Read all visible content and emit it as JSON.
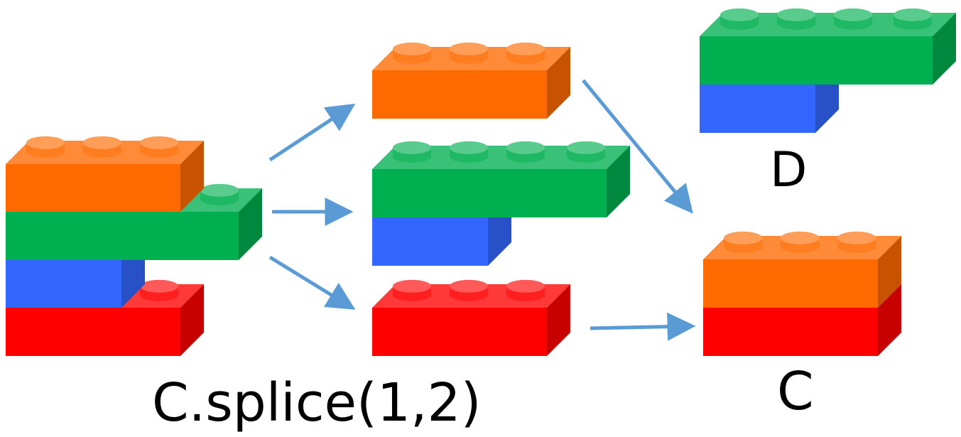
{
  "caption": "C.splice(1,2)",
  "labels": {
    "d": "D",
    "c": "C"
  },
  "colors": {
    "orange": "#ff6a00",
    "green": "#00b050",
    "blue": "#3366ff",
    "red": "#ff0000",
    "arrow": "#5b9bd5"
  },
  "groups": [
    {
      "name": "original-stack",
      "bricks": [
        "orange",
        "green",
        "blue",
        "red"
      ]
    },
    {
      "name": "spliced-pieces",
      "bricks": [
        "orange",
        "green",
        "blue",
        "red"
      ]
    },
    {
      "name": "result-d",
      "bricks": [
        "green",
        "blue"
      ]
    },
    {
      "name": "result-c",
      "bricks": [
        "orange",
        "red"
      ]
    }
  ]
}
